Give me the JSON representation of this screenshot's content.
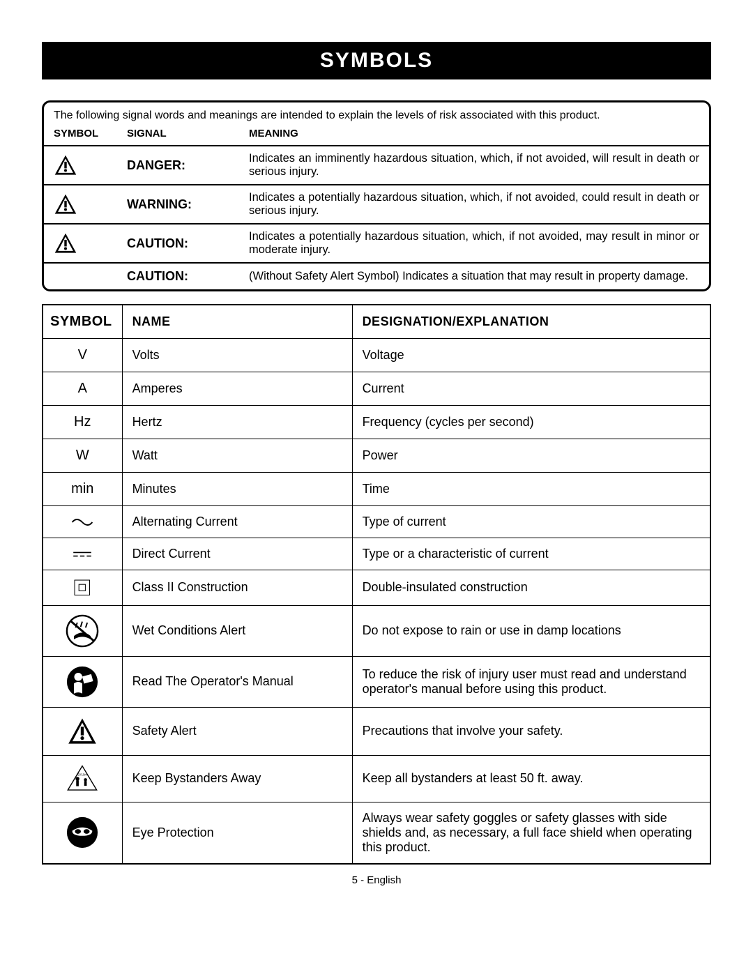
{
  "title": "SYMBOLS",
  "signal_section": {
    "intro": "The following signal words and meanings are intended to explain the levels of risk associated with this product.",
    "headers": {
      "symbol": "SYMBOL",
      "signal": "SIGNAL",
      "meaning": "MEANING"
    },
    "rows": [
      {
        "icon": "alert",
        "signal": "DANGER:",
        "meaning": "Indicates an imminently hazardous situation, which, if not avoided, will result in death or serious injury."
      },
      {
        "icon": "alert",
        "signal": "WARNING:",
        "meaning": "Indicates a potentially hazardous situation, which, if not avoided, could result in death or serious injury."
      },
      {
        "icon": "alert",
        "signal": "CAUTION:",
        "meaning": "Indicates a potentially hazardous situation, which, if not avoided, may result in minor or moderate injury."
      },
      {
        "icon": "none",
        "signal": "CAUTION:",
        "meaning": "(Without Safety Alert Symbol) Indicates a situation that may result in property damage."
      }
    ]
  },
  "symbols_section": {
    "headers": {
      "symbol": "SYMBOL",
      "name": "NAME",
      "designation": "DESIGNATION/EXPLANATION"
    },
    "rows": [
      {
        "symbol_text": "V",
        "icon": "",
        "name": "Volts",
        "designation": "Voltage"
      },
      {
        "symbol_text": "A",
        "icon": "",
        "name": "Amperes",
        "designation": "Current"
      },
      {
        "symbol_text": "Hz",
        "icon": "",
        "name": "Hertz",
        "designation": "Frequency (cycles per second)"
      },
      {
        "symbol_text": "W",
        "icon": "",
        "name": "Watt",
        "designation": "Power"
      },
      {
        "symbol_text": "min",
        "icon": "",
        "name": "Minutes",
        "designation": "Time"
      },
      {
        "symbol_text": "",
        "icon": "ac",
        "name": "Alternating Current",
        "designation": "Type of current"
      },
      {
        "symbol_text": "",
        "icon": "dc",
        "name": "Direct Current",
        "designation": "Type or a characteristic of current"
      },
      {
        "symbol_text": "",
        "icon": "class2",
        "name": "Class II Construction",
        "designation": "Double-insulated construction"
      },
      {
        "symbol_text": "",
        "icon": "wet",
        "name": "Wet Conditions Alert",
        "designation": "Do not expose to rain or use in damp locations"
      },
      {
        "symbol_text": "",
        "icon": "manual",
        "name": "Read The Operator's Manual",
        "designation": "To reduce the risk of injury user must read and understand operator's manual before using this product."
      },
      {
        "symbol_text": "",
        "icon": "alert-big",
        "name": "Safety Alert",
        "designation": "Precautions that involve your safety."
      },
      {
        "symbol_text": "",
        "icon": "bystander",
        "name": "Keep Bystanders Away",
        "designation": "Keep all bystanders at least 50 ft. away."
      },
      {
        "symbol_text": "",
        "icon": "eye",
        "name": "Eye Protection",
        "designation": "Always wear safety goggles or safety glasses with side shields and, as necessary, a full face shield when operating this product."
      }
    ]
  },
  "footer": "5 - English",
  "colors": {
    "black": "#000000",
    "white": "#ffffff"
  }
}
